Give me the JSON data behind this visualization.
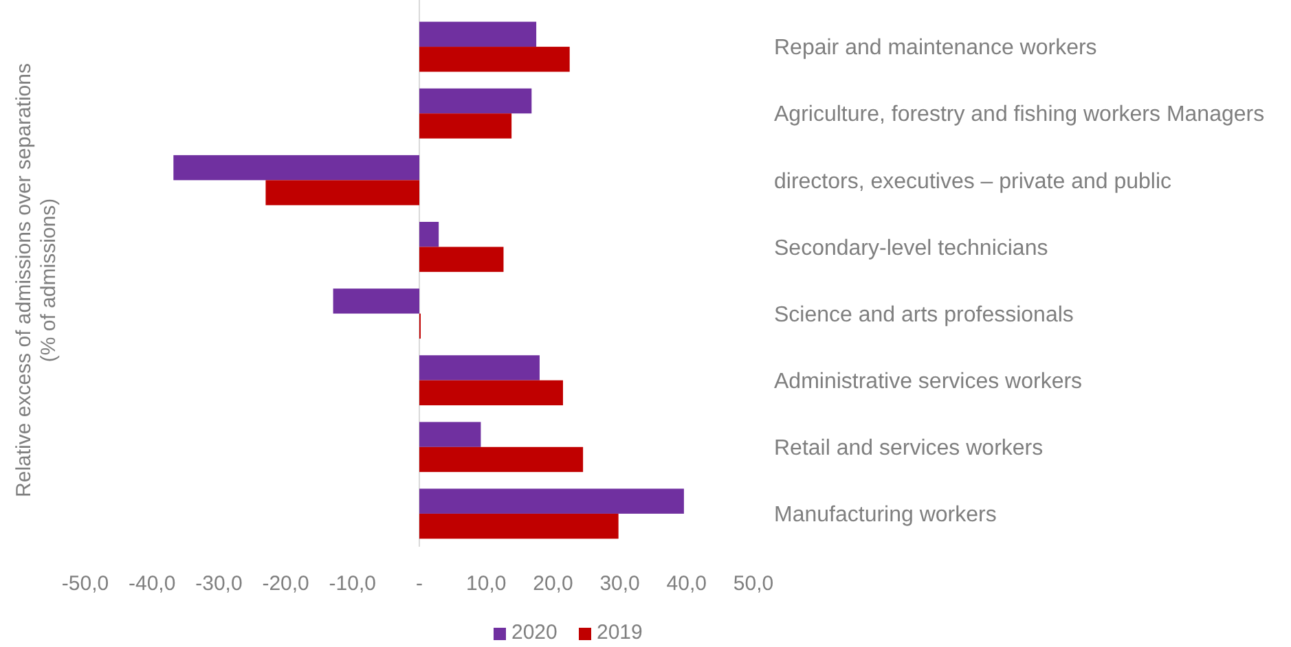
{
  "chart_data": {
    "type": "bar",
    "orientation": "horizontal",
    "ylabel": "Relative excess of admissions over separations\n(% of admissions)",
    "categories": [
      "Repair and maintenance workers",
      "Agriculture, forestry and fishing workers Managers",
      "directors, executives – private and public",
      "Secondary-level technicians",
      "Science and arts professionals",
      "Administrative services workers",
      "Retail and services workers",
      "Manufacturing workers"
    ],
    "series": [
      {
        "name": "2020",
        "color": "#7030a0",
        "values": [
          17.5,
          16.8,
          -36.8,
          2.9,
          -12.9,
          18.0,
          9.2,
          39.6
        ]
      },
      {
        "name": "2019",
        "color": "#c00000",
        "values": [
          22.5,
          13.8,
          -23.0,
          12.6,
          0.2,
          21.5,
          24.5,
          29.8
        ]
      }
    ],
    "xlim": [
      -50,
      50
    ],
    "xticks": [
      {
        "value": -50,
        "label": "-50,0"
      },
      {
        "value": -40,
        "label": "-40,0"
      },
      {
        "value": -30,
        "label": "-30,0"
      },
      {
        "value": -20,
        "label": "-20,0"
      },
      {
        "value": -10,
        "label": "-10,0"
      },
      {
        "value": 0,
        "label": "-"
      },
      {
        "value": 10,
        "label": "10,0"
      },
      {
        "value": 20,
        "label": "20,0"
      },
      {
        "value": 30,
        "label": "30,0"
      },
      {
        "value": 40,
        "label": "40,0"
      },
      {
        "value": 50,
        "label": "50,0"
      }
    ],
    "legend": "bottom"
  }
}
